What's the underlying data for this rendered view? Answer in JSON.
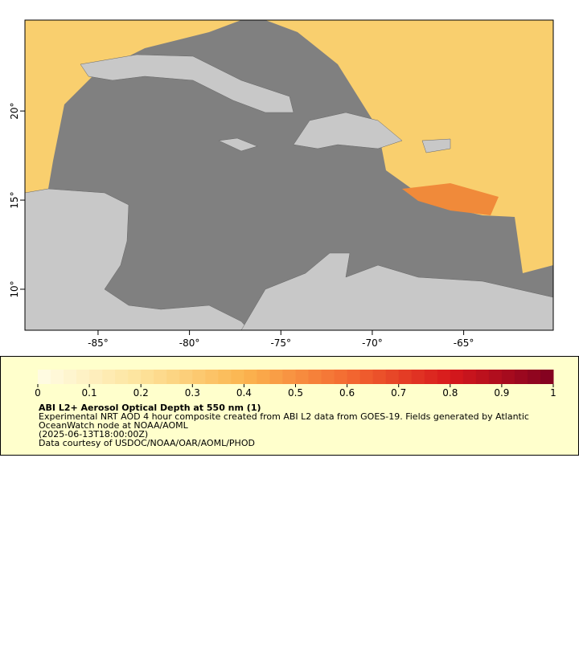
{
  "map": {
    "xlim": [
      -89,
      -60.1
    ],
    "ylim": [
      7.7,
      25.1
    ],
    "xticks": [
      {
        "value": -85,
        "label": "-85°"
      },
      {
        "value": -80,
        "label": "-80°"
      },
      {
        "value": -75,
        "label": "-75°"
      },
      {
        "value": -70,
        "label": "-70°"
      },
      {
        "value": -65,
        "label": "-65°"
      }
    ],
    "yticks": [
      {
        "value": 10,
        "label": "10°"
      },
      {
        "value": 15,
        "label": "15°"
      },
      {
        "value": 20,
        "label": "20°"
      }
    ]
  },
  "colorbar": {
    "range": [
      0,
      1
    ],
    "ticks": [
      0,
      0.1,
      0.2,
      0.3,
      0.4,
      0.5,
      0.6,
      0.7,
      0.8,
      0.9,
      1
    ],
    "colors": [
      "#fffde6",
      "#fde39b",
      "#fbb54f",
      "#f46a31",
      "#d7191c",
      "#7f0020"
    ]
  },
  "legend": {
    "title": "ABI L2+ Aerosol Optical Depth at 550 nm (1)",
    "lines": [
      "Experimental NRT AOD 4 hour composite created from ABI L2 data from GOES-19. Fields generated by Atlantic",
      "OceanWatch node at NOAA/AOML",
      "(2025-06-13T18:00:00Z)",
      "Data courtesy of USDOC/NOAA/OAR/AOML/PHOD"
    ]
  }
}
